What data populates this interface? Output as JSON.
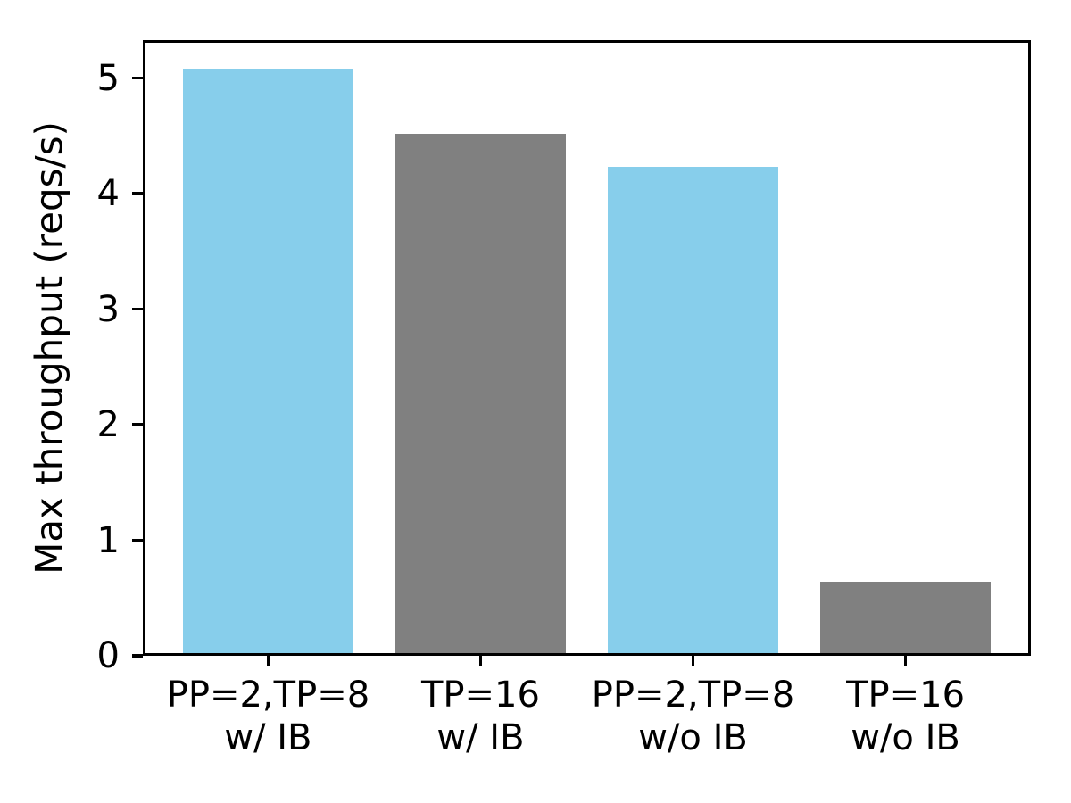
{
  "chart_data": {
    "type": "bar",
    "title": "",
    "xlabel": "",
    "ylabel": "Max throughput (reqs/s)",
    "categories": [
      [
        "PP=2,TP=8",
        "w/ IB"
      ],
      [
        "TP=16",
        "w/ IB"
      ],
      [
        "PP=2,TP=8",
        "w/o IB"
      ],
      [
        "TP=16",
        "w/o IB"
      ]
    ],
    "values": [
      5.08,
      4.52,
      4.23,
      0.64
    ],
    "bar_colors": [
      "#87ceeb",
      "#808080",
      "#87ceeb",
      "#808080"
    ],
    "yticks": [
      0,
      1,
      2,
      3,
      4,
      5
    ],
    "ylim": [
      0,
      5.33
    ],
    "xlim": [
      -0.59,
      3.59
    ],
    "bar_width_units": 0.8,
    "grid": false,
    "legend": null,
    "frame": "full-box",
    "axis_color": "#000000",
    "background_color": "#ffffff"
  }
}
